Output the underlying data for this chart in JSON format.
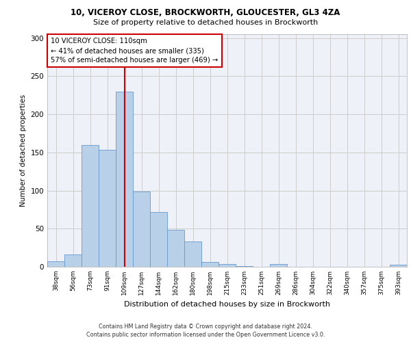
{
  "title1": "10, VICEROY CLOSE, BROCKWORTH, GLOUCESTER, GL3 4ZA",
  "title2": "Size of property relative to detached houses in Brockworth",
  "xlabel": "Distribution of detached houses by size in Brockworth",
  "ylabel": "Number of detached properties",
  "categories": [
    "38sqm",
    "56sqm",
    "73sqm",
    "91sqm",
    "109sqm",
    "127sqm",
    "144sqm",
    "162sqm",
    "180sqm",
    "198sqm",
    "215sqm",
    "233sqm",
    "251sqm",
    "269sqm",
    "286sqm",
    "304sqm",
    "322sqm",
    "340sqm",
    "357sqm",
    "375sqm",
    "393sqm"
  ],
  "values": [
    7,
    16,
    160,
    153,
    230,
    99,
    72,
    48,
    33,
    6,
    4,
    1,
    0,
    4,
    0,
    0,
    0,
    0,
    0,
    0,
    3
  ],
  "bar_color": "#b8d0e8",
  "bar_edge_color": "#6699cc",
  "vline_x_index": 4,
  "vline_color": "#cc0000",
  "annotation_line1": "10 VICEROY CLOSE: 110sqm",
  "annotation_line2": "← 41% of detached houses are smaller (335)",
  "annotation_line3": "57% of semi-detached houses are larger (469) →",
  "grid_color": "#cccccc",
  "bg_color": "#eef2f8",
  "footer1": "Contains HM Land Registry data © Crown copyright and database right 2024.",
  "footer2": "Contains public sector information licensed under the Open Government Licence v3.0.",
  "ylim": [
    0,
    305
  ],
  "yticks": [
    0,
    50,
    100,
    150,
    200,
    250,
    300
  ]
}
